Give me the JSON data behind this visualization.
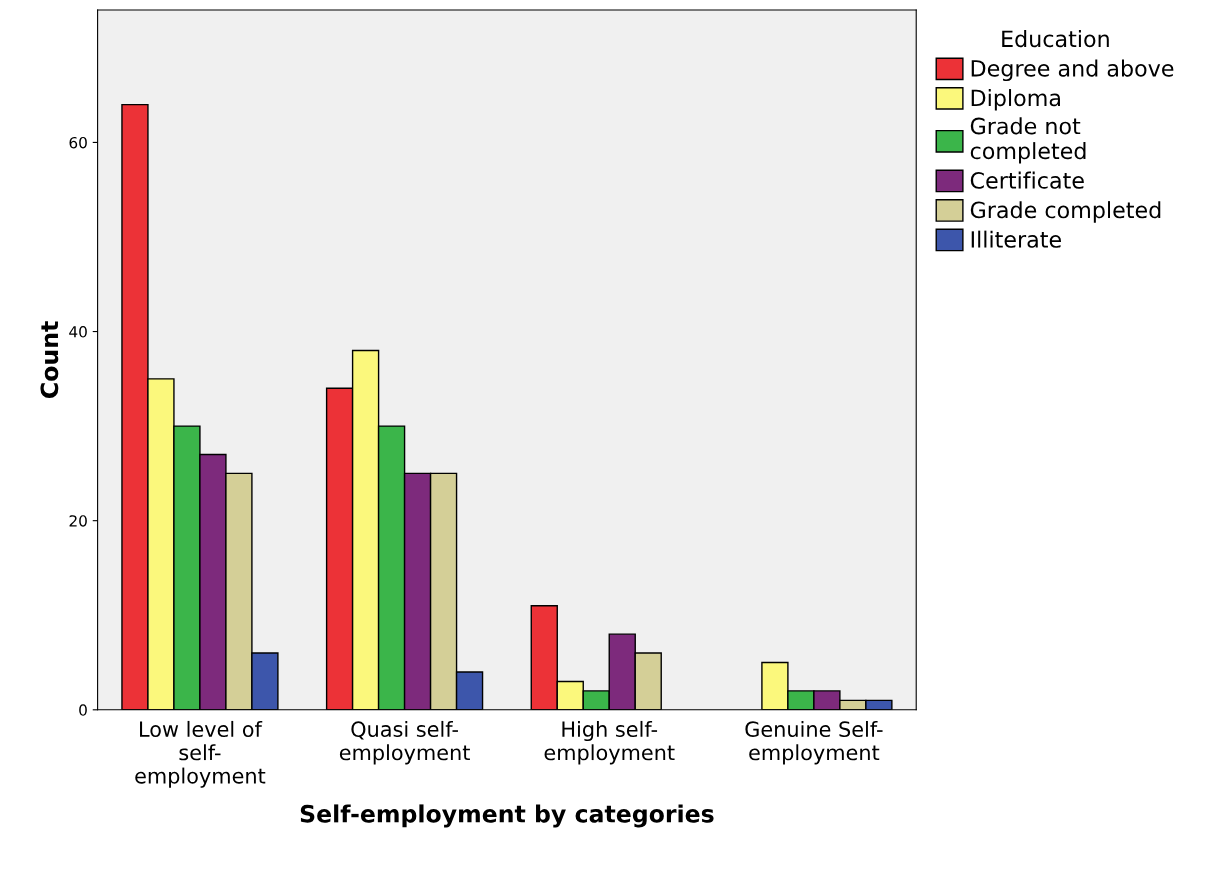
{
  "chart_data": {
    "type": "bar",
    "xlabel": "Self-employment by categories",
    "ylabel": "Count",
    "categories": [
      "Low level of\nself-\nemployment",
      "Quasi self-\nemployment",
      "High self-\nemployment",
      "Genuine Self-\nemployment"
    ],
    "legend_title": "Education",
    "legend": "right",
    "grid": false,
    "ylim": [
      0,
      74
    ],
    "yticks": [
      0,
      20,
      40,
      60
    ],
    "series": [
      {
        "name": "Degree and above",
        "color": "#ec3237",
        "values": [
          64,
          34,
          11,
          null
        ]
      },
      {
        "name": "Diploma",
        "color": "#fbf87c",
        "values": [
          35,
          38,
          3,
          5
        ]
      },
      {
        "name": "Grade not\ncompleted",
        "color": "#3bb54a",
        "values": [
          30,
          30,
          2,
          2
        ]
      },
      {
        "name": "Certificate",
        "color": "#7d2a7c",
        "values": [
          27,
          25,
          8,
          2
        ]
      },
      {
        "name": "Grade completed",
        "color": "#d4cf97",
        "values": [
          25,
          25,
          6,
          1
        ]
      },
      {
        "name": "Illiterate",
        "color": "#3d56ab",
        "values": [
          6,
          4,
          null,
          1
        ]
      }
    ]
  }
}
